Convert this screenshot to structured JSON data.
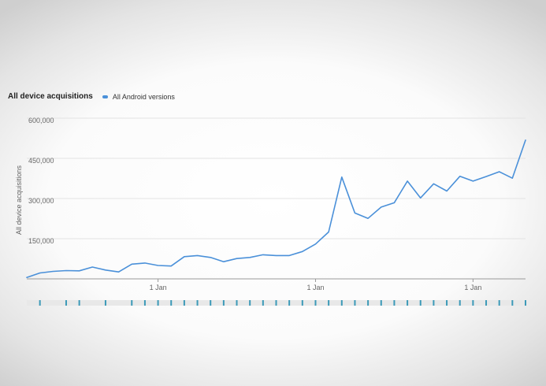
{
  "header": {
    "title": "All device acquisitions",
    "legend_label": "All Android versions"
  },
  "colors": {
    "series": "#4a90d9",
    "grid": "#e3e3e3",
    "axis": "#999999",
    "scrub_active": "#3c9ab8",
    "scrub_track": "#e8e8e8"
  },
  "chart_data": {
    "type": "line",
    "title": "All device acquisitions",
    "ylabel": "All device acquisitions",
    "ylim": [
      0,
      600000
    ],
    "y_ticks": [
      {
        "value": 150000,
        "label": "150,000"
      },
      {
        "value": 300000,
        "label": "300,000"
      },
      {
        "value": 450000,
        "label": "450,000"
      },
      {
        "value": 600000,
        "label": "600,000"
      }
    ],
    "x_ticks": [
      {
        "index": 10,
        "label": "1 Jan"
      },
      {
        "index": 22,
        "label": "1 Jan"
      },
      {
        "index": 34,
        "label": "1 Jan"
      }
    ],
    "grid": true,
    "legend_position": "top-left",
    "series": [
      {
        "name": "All Android versions",
        "values": [
          5000,
          22000,
          28000,
          31000,
          30000,
          44000,
          33000,
          26000,
          55000,
          59000,
          50000,
          48000,
          83000,
          87000,
          80000,
          64000,
          76000,
          80000,
          90000,
          87000,
          87000,
          102000,
          130000,
          175000,
          380000,
          246000,
          226000,
          268000,
          284000,
          365000,
          302000,
          355000,
          328000,
          383000,
          365000,
          382000,
          400000,
          376000,
          518000
        ]
      }
    ]
  },
  "scrubber": {
    "marks": [
      0,
      1,
      0,
      1,
      1,
      0,
      1,
      0,
      1,
      1,
      1,
      1,
      1,
      1,
      1,
      1,
      1,
      1,
      1,
      1,
      1,
      1,
      1,
      1,
      1,
      1,
      1,
      1,
      1,
      1,
      1,
      1,
      1,
      1,
      1,
      1,
      1,
      1,
      1
    ]
  }
}
